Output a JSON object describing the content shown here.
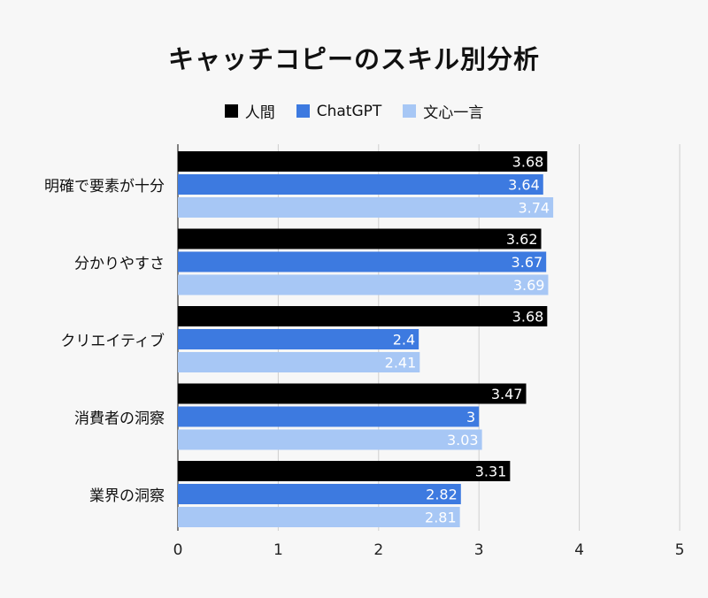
{
  "chart_data": {
    "type": "bar",
    "orientation": "horizontal",
    "title": "キャッチコピーのスキル別分析",
    "categories": [
      "明確で要素が十分",
      "分かりやすさ",
      "クリエイティブ",
      "消費者の洞察",
      "業界の洞察"
    ],
    "series": [
      {
        "name": "人間",
        "color": "#000000",
        "label_color": "#ffffff",
        "values": [
          3.68,
          3.62,
          3.68,
          3.47,
          3.31
        ]
      },
      {
        "name": "ChatGPT",
        "color": "#3d7ae0",
        "label_color": "#ffffff",
        "values": [
          3.64,
          3.67,
          2.4,
          3,
          2.82
        ]
      },
      {
        "name": "文心一言",
        "color": "#a7c7f5",
        "label_color": "#ffffff",
        "values": [
          3.74,
          3.69,
          2.41,
          3.03,
          2.81
        ]
      }
    ],
    "xlim": [
      0,
      5
    ],
    "xticks": [
      0,
      1,
      2,
      3,
      4,
      5
    ],
    "grid": true,
    "legend_position": "top-center",
    "data_labels": true
  }
}
